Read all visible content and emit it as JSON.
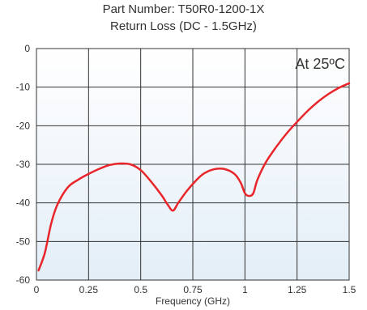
{
  "chart_data": {
    "type": "line",
    "title": "Part Number: T50R0-1200-1X",
    "subtitle": "Return Loss (DC - 1.5GHz)",
    "xlabel": "Frequency (GHz)",
    "ylabel": "",
    "annotation": "At 25ºC",
    "xlim": [
      0,
      1.5
    ],
    "ylim": [
      -60,
      0
    ],
    "x_ticks": [
      "0",
      "0.25",
      "0.5",
      "0.75",
      "1",
      "1.25",
      "1.5"
    ],
    "y_ticks": [
      "0",
      "-10",
      "-20",
      "-30",
      "-40",
      "-50",
      "-60"
    ],
    "x_tick_values": [
      0,
      0.25,
      0.5,
      0.75,
      1,
      1.25,
      1.5
    ],
    "y_tick_values": [
      0,
      -10,
      -20,
      -30,
      -40,
      -50,
      -60
    ],
    "grid": true,
    "line_color": "#e8252a",
    "series": [
      {
        "values": [
          [
            0.01,
            -57.5
          ],
          [
            0.04,
            -53
          ],
          [
            0.07,
            -45.5
          ],
          [
            0.1,
            -40.5
          ],
          [
            0.15,
            -36
          ],
          [
            0.2,
            -34
          ],
          [
            0.25,
            -32.5
          ],
          [
            0.3,
            -31.2
          ],
          [
            0.35,
            -30.2
          ],
          [
            0.4,
            -29.8
          ],
          [
            0.45,
            -30
          ],
          [
            0.5,
            -31.5
          ],
          [
            0.55,
            -34.5
          ],
          [
            0.6,
            -38
          ],
          [
            0.63,
            -40.5
          ],
          [
            0.655,
            -42
          ],
          [
            0.68,
            -40
          ],
          [
            0.72,
            -37
          ],
          [
            0.76,
            -34.5
          ],
          [
            0.8,
            -32.5
          ],
          [
            0.85,
            -31.3
          ],
          [
            0.9,
            -31.2
          ],
          [
            0.95,
            -32.5
          ],
          [
            0.98,
            -34.8
          ],
          [
            1.0,
            -37.5
          ],
          [
            1.02,
            -38.2
          ],
          [
            1.04,
            -37.5
          ],
          [
            1.06,
            -34
          ],
          [
            1.1,
            -29.5
          ],
          [
            1.15,
            -25.5
          ],
          [
            1.2,
            -22
          ],
          [
            1.25,
            -19
          ],
          [
            1.3,
            -16.2
          ],
          [
            1.35,
            -13.8
          ],
          [
            1.4,
            -11.8
          ],
          [
            1.45,
            -10.2
          ],
          [
            1.5,
            -9
          ]
        ]
      }
    ]
  }
}
